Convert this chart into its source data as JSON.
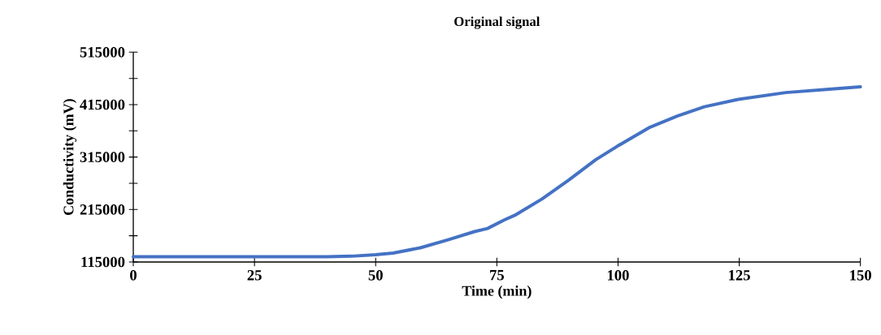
{
  "chart_data": {
    "type": "line",
    "title": "Original  signal",
    "xlabel": "Time (min)",
    "ylabel": "Conductivity  (mV)",
    "series": [
      {
        "color": "#4472c4",
        "x": [
          0,
          10,
          20,
          30,
          40,
          45,
          50,
          53.6,
          59.2,
          64.8,
          70.4,
          73.1,
          76.5,
          78.7,
          84.3,
          89.8,
          95.4,
          99.9,
          106.6,
          112.2,
          117.8,
          124.8,
          134.6,
          143,
          150
        ],
        "values": [
          125000,
          125000,
          125000,
          125000,
          125000,
          126000,
          129000,
          132000,
          142000,
          157000,
          173000,
          179000,
          195000,
          204000,
          235000,
          271000,
          310000,
          336000,
          372000,
          393000,
          411000,
          425000,
          438000,
          444000,
          449000
        ]
      }
    ],
    "xlim": [
      0,
      150
    ],
    "xticks": [
      0,
      25,
      50,
      75,
      100,
      125,
      150
    ],
    "ylim": [
      115000,
      515000
    ],
    "yticks": [
      115000,
      {
        "value": 165000,
        "label": null
      },
      215000,
      {
        "value": 265000,
        "label": null
      },
      315000,
      {
        "value": 365000,
        "label": null
      },
      415000,
      {
        "value": 465000,
        "label": null
      },
      515000
    ],
    "grid": false,
    "legend": false,
    "marker": "none",
    "line_style": "solid"
  }
}
